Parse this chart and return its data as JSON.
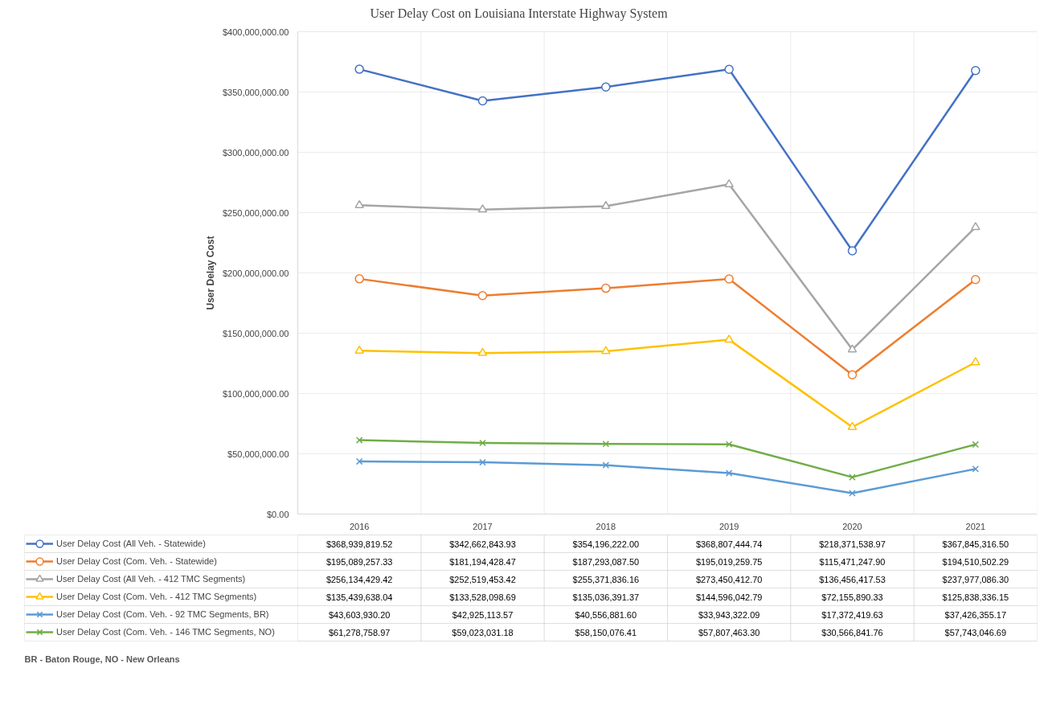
{
  "chart_data": {
    "type": "line",
    "title": "User Delay Cost on Louisiana Interstate Highway System",
    "ylabel": "User Delay Cost",
    "categories": [
      "2016",
      "2017",
      "2018",
      "2019",
      "2020",
      "2021"
    ],
    "series": [
      {
        "name": "User Delay Cost (All Veh. - Statewide)",
        "color": "#4472c4",
        "marker": "circle",
        "values": [
          368939819.52,
          342662843.93,
          354196222.0,
          368807444.74,
          218371538.97,
          367845316.5
        ],
        "value_labels": [
          "$368,939,819.52",
          "$342,662,843.93",
          "$354,196,222.00",
          "$368,807,444.74",
          "$218,371,538.97",
          "$367,845,316.50"
        ]
      },
      {
        "name": "User Delay Cost (Com. Veh. - Statewide)",
        "color": "#ed7d31",
        "marker": "circle",
        "values": [
          195089257.33,
          181194428.47,
          187293087.5,
          195019259.75,
          115471247.9,
          194510502.29
        ],
        "value_labels": [
          "$195,089,257.33",
          "$181,194,428.47",
          "$187,293,087.50",
          "$195,019,259.75",
          "$115,471,247.90",
          "$194,510,502.29"
        ]
      },
      {
        "name": "User Delay Cost (All Veh. - 412 TMC Segments)",
        "color": "#a5a5a5",
        "marker": "triangle",
        "values": [
          256134429.42,
          252519453.42,
          255371836.16,
          273450412.7,
          136456417.53,
          237977086.3
        ],
        "value_labels": [
          "$256,134,429.42",
          "$252,519,453.42",
          "$255,371,836.16",
          "$273,450,412.70",
          "$136,456,417.53",
          "$237,977,086.30"
        ]
      },
      {
        "name": "User Delay Cost (Com. Veh. - 412 TMC Segments)",
        "color": "#ffc000",
        "marker": "triangle",
        "values": [
          135439638.04,
          133528098.69,
          135036391.37,
          144596042.79,
          72155890.33,
          125838336.15
        ],
        "value_labels": [
          "$135,439,638.04",
          "$133,528,098.69",
          "$135,036,391.37",
          "$144,596,042.79",
          "$72,155,890.33",
          "$125,838,336.15"
        ]
      },
      {
        "name": "User Delay Cost (Com. Veh. - 92 TMC Segments, BR)",
        "color": "#5b9bd5",
        "marker": "cross",
        "values": [
          43603930.2,
          42925113.57,
          40556881.6,
          33943322.09,
          17372419.63,
          37426355.17
        ],
        "value_labels": [
          "$43,603,930.20",
          "$42,925,113.57",
          "$40,556,881.60",
          "$33,943,322.09",
          "$17,372,419.63",
          "$37,426,355.17"
        ]
      },
      {
        "name": "User Delay Cost (Com. Veh. - 146 TMC Segments, NO)",
        "color": "#70ad47",
        "marker": "cross",
        "values": [
          61278758.97,
          59023031.18,
          58150076.41,
          57807463.3,
          30566841.76,
          57743046.69
        ],
        "value_labels": [
          "$61,278,758.97",
          "$59,023,031.18",
          "$58,150,076.41",
          "$57,807,463.30",
          "$30,566,841.76",
          "$57,743,046.69"
        ]
      }
    ],
    "ylim": [
      0,
      400000000
    ],
    "yticks": [
      {
        "value": 0,
        "label": "$0.00"
      },
      {
        "value": 50000000,
        "label": "$50,000,000.00"
      },
      {
        "value": 100000000,
        "label": "$100,000,000.00"
      },
      {
        "value": 150000000,
        "label": "$150,000,000.00"
      },
      {
        "value": 200000000,
        "label": "$200,000,000.00"
      },
      {
        "value": 250000000,
        "label": "$250,000,000.00"
      },
      {
        "value": 300000000,
        "label": "$300,000,000.00"
      },
      {
        "value": 350000000,
        "label": "$350,000,000.00"
      },
      {
        "value": 400000000,
        "label": "$400,000,000.00"
      }
    ],
    "grid": true,
    "legend": "bottom",
    "line_style": "solid",
    "annotations": [
      "BR - Baton Rouge, NO - New Orleans"
    ]
  }
}
